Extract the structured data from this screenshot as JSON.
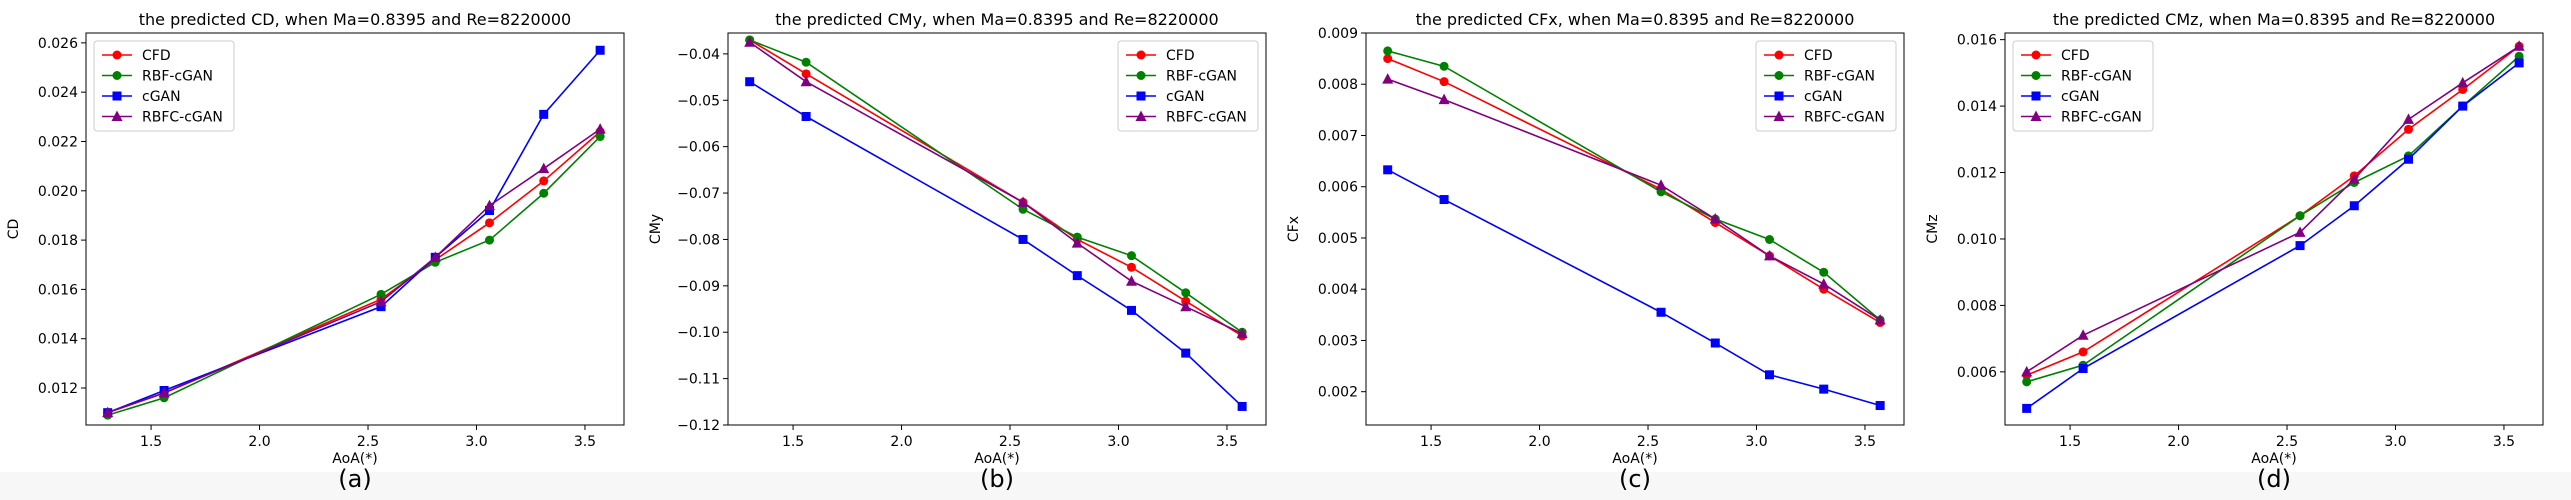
{
  "figure": {
    "common_xlabel": "AoA(*)",
    "series_styles": [
      {
        "name": "CFD",
        "color": "#ff0000",
        "marker": "circle"
      },
      {
        "name": "RBF-cGAN",
        "color": "#008000",
        "marker": "circle"
      },
      {
        "name": "cGAN",
        "color": "#0000ff",
        "marker": "square"
      },
      {
        "name": "RBFC-cGAN",
        "color": "#800080",
        "marker": "triangle"
      }
    ]
  },
  "chart_data": [
    {
      "type": "line",
      "panel_label": "(a)",
      "title": "the predicted CD, when Ma=0.8395 and Re=8220000",
      "xlabel": "AoA(*)",
      "ylabel": "CD",
      "xlim": [
        1.2,
        3.68
      ],
      "ylim": [
        0.0105,
        0.0264
      ],
      "xticks": [
        1.5,
        2.0,
        2.5,
        3.0,
        3.5
      ],
      "xtick_labels": [
        "1.5",
        "2.0",
        "2.5",
        "3.0",
        "3.5"
      ],
      "yticks": [
        0.012,
        0.014,
        0.016,
        0.018,
        0.02,
        0.022,
        0.024,
        0.026
      ],
      "ytick_labels": [
        "0.012",
        "0.014",
        "0.016",
        "0.018",
        "0.020",
        "0.022",
        "0.024",
        "0.026"
      ],
      "legend_loc": "upper-left",
      "x": [
        1.3,
        1.56,
        2.56,
        2.81,
        3.06,
        3.31,
        3.57
      ],
      "series": [
        {
          "name": "CFD",
          "values": [
            0.011,
            0.0118,
            0.0156,
            0.0172,
            0.0187,
            0.0204,
            0.0224
          ]
        },
        {
          "name": "RBF-cGAN",
          "values": [
            0.0109,
            0.0116,
            0.0158,
            0.0171,
            0.018,
            0.0199,
            0.0222
          ]
        },
        {
          "name": "cGAN",
          "values": [
            0.011,
            0.0119,
            0.0153,
            0.0173,
            0.0192,
            0.0231,
            0.0257
          ]
        },
        {
          "name": "RBFC-cGAN",
          "values": [
            0.011,
            0.0118,
            0.0155,
            0.0173,
            0.0194,
            0.0209,
            0.0225
          ]
        }
      ]
    },
    {
      "type": "line",
      "panel_label": "(b)",
      "title": "the predicted CMy, when Ma=0.8395 and Re=8220000",
      "xlabel": "AoA(*)",
      "ylabel": "CMy",
      "xlim": [
        1.2,
        3.68
      ],
      "ylim": [
        -0.12,
        -0.0355
      ],
      "xticks": [
        1.5,
        2.0,
        2.5,
        3.0,
        3.5
      ],
      "xtick_labels": [
        "1.5",
        "2.0",
        "2.5",
        "3.0",
        "3.5"
      ],
      "yticks": [
        -0.12,
        -0.11,
        -0.1,
        -0.09,
        -0.08,
        -0.07,
        -0.06,
        -0.05,
        -0.04
      ],
      "ytick_labels": [
        "−0.12",
        "−0.11",
        "−0.10",
        "−0.09",
        "−0.08",
        "−0.07",
        "−0.06",
        "−0.05",
        "−0.04"
      ],
      "legend_loc": "upper-right",
      "x": [
        1.3,
        1.56,
        2.56,
        2.81,
        3.06,
        3.31,
        3.57
      ],
      "series": [
        {
          "name": "CFD",
          "values": [
            -0.037,
            -0.0443,
            -0.072,
            -0.08,
            -0.086,
            -0.0933,
            -0.1008
          ]
        },
        {
          "name": "RBF-cGAN",
          "values": [
            -0.037,
            -0.0418,
            -0.0735,
            -0.0795,
            -0.0835,
            -0.0915,
            -0.1
          ]
        },
        {
          "name": "cGAN",
          "values": [
            -0.046,
            -0.0535,
            -0.08,
            -0.0878,
            -0.0953,
            -0.1045,
            -0.116
          ]
        },
        {
          "name": "RBFC-cGAN",
          "values": [
            -0.0375,
            -0.046,
            -0.072,
            -0.0808,
            -0.089,
            -0.0945,
            -0.1003
          ]
        }
      ]
    },
    {
      "type": "line",
      "panel_label": "(c)",
      "title": "the predicted CFx, when Ma=0.8395 and Re=8220000",
      "xlabel": "AoA(*)",
      "ylabel": "CFx",
      "xlim": [
        1.2,
        3.68
      ],
      "ylim": [
        0.00135,
        0.009
      ],
      "xticks": [
        1.5,
        2.0,
        2.5,
        3.0,
        3.5
      ],
      "xtick_labels": [
        "1.5",
        "2.0",
        "2.5",
        "3.0",
        "3.5"
      ],
      "yticks": [
        0.002,
        0.003,
        0.004,
        0.005,
        0.006,
        0.007,
        0.008,
        0.009
      ],
      "ytick_labels": [
        "0.002",
        "0.003",
        "0.004",
        "0.005",
        "0.006",
        "0.007",
        "0.008",
        "0.009"
      ],
      "legend_loc": "upper-right",
      "x": [
        1.3,
        1.56,
        2.56,
        2.81,
        3.06,
        3.31,
        3.57
      ],
      "series": [
        {
          "name": "CFD",
          "values": [
            0.0085,
            0.00805,
            0.00595,
            0.0053,
            0.00465,
            0.004,
            0.00335
          ]
        },
        {
          "name": "RBF-cGAN",
          "values": [
            0.00865,
            0.00835,
            0.0059,
            0.00537,
            0.00497,
            0.00433,
            0.0034
          ]
        },
        {
          "name": "cGAN",
          "values": [
            0.00633,
            0.00575,
            0.00355,
            0.00295,
            0.00233,
            0.00205,
            0.00173
          ]
        },
        {
          "name": "RBFC-cGAN",
          "values": [
            0.0081,
            0.0077,
            0.00603,
            0.00537,
            0.00465,
            0.0041,
            0.0034
          ]
        }
      ]
    },
    {
      "type": "line",
      "panel_label": "(d)",
      "title": "the predicted CMz, when Ma=0.8395 and Re=8220000",
      "xlabel": "AoA(*)",
      "ylabel": "CMz",
      "xlim": [
        1.2,
        3.68
      ],
      "ylim": [
        0.0044,
        0.0162
      ],
      "xticks": [
        1.5,
        2.0,
        2.5,
        3.0,
        3.5
      ],
      "xtick_labels": [
        "1.5",
        "2.0",
        "2.5",
        "3.0",
        "3.5"
      ],
      "yticks": [
        0.006,
        0.008,
        0.01,
        0.012,
        0.014,
        0.016
      ],
      "ytick_labels": [
        "0.006",
        "0.008",
        "0.010",
        "0.012",
        "0.014",
        "0.016"
      ],
      "legend_loc": "upper-left",
      "x": [
        1.3,
        1.56,
        2.56,
        2.81,
        3.06,
        3.31,
        3.57
      ],
      "series": [
        {
          "name": "CFD",
          "values": [
            0.0059,
            0.0066,
            0.0107,
            0.0119,
            0.0133,
            0.0145,
            0.0158
          ]
        },
        {
          "name": "RBF-cGAN",
          "values": [
            0.0057,
            0.0062,
            0.0107,
            0.0117,
            0.0125,
            0.014,
            0.0155
          ]
        },
        {
          "name": "cGAN",
          "values": [
            0.0049,
            0.0061,
            0.0098,
            0.011,
            0.0124,
            0.014,
            0.0153
          ]
        },
        {
          "name": "RBFC-cGAN",
          "values": [
            0.006,
            0.0071,
            0.0102,
            0.0118,
            0.0136,
            0.0147,
            0.0158
          ]
        }
      ]
    }
  ]
}
